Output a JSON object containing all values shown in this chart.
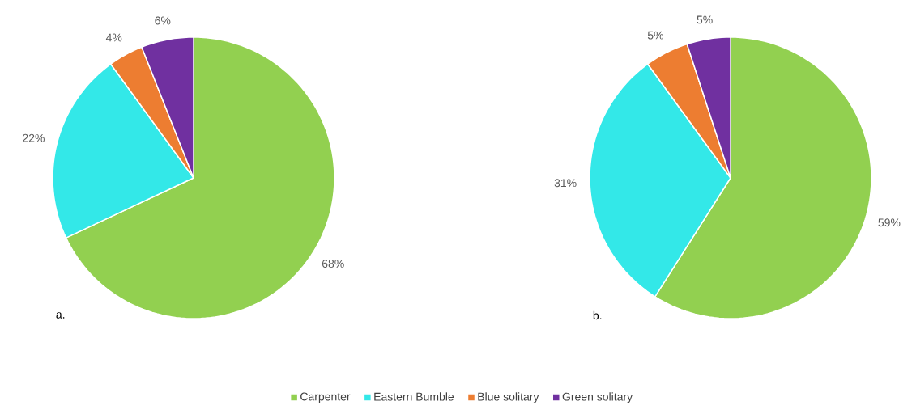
{
  "chart_data": [
    {
      "type": "pie",
      "title": "a.",
      "categories": [
        "Carpenter",
        "Eastern Bumble",
        "Blue solitary",
        "Green solitary"
      ],
      "values": [
        68,
        22,
        4,
        6
      ],
      "colors": [
        "#92d050",
        "#33e8e8",
        "#ed7d31",
        "#7030a0"
      ],
      "value_labels": [
        "68%",
        "22%",
        "4%",
        "6%"
      ],
      "legend": "bottom"
    },
    {
      "type": "pie",
      "title": "b.",
      "categories": [
        null,
        null,
        null,
        null
      ],
      "values": [
        59,
        31,
        5,
        5
      ],
      "colors": [
        "#92d050",
        "#33e8e8",
        "#ed7d31",
        "#7030a0"
      ],
      "value_labels": [
        "59%",
        "31%",
        "5%",
        "5%"
      ]
    }
  ]
}
